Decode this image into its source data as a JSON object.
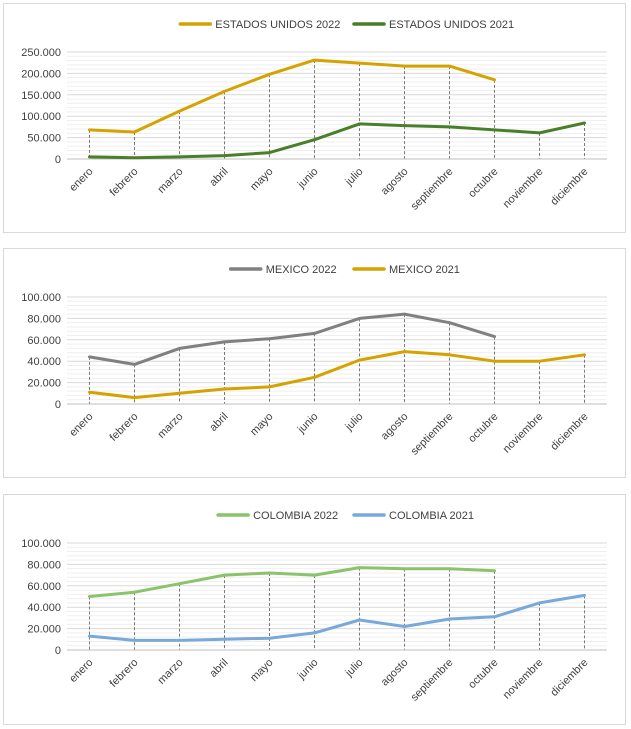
{
  "chart_data": [
    {
      "type": "line",
      "categories": [
        "enero",
        "febrero",
        "marzo",
        "abril",
        "mayo",
        "junio",
        "julio",
        "agosto",
        "septiembre",
        "octubre",
        "noviembre",
        "diciembre"
      ],
      "series": [
        {
          "name": "ESTADOS UNIDOS 2022",
          "color": "#d4a300",
          "values": [
            68000,
            63000,
            112000,
            158000,
            198000,
            231000,
            224000,
            217000,
            217000,
            185000,
            null,
            null
          ]
        },
        {
          "name": "ESTADOS UNIDOS 2021",
          "color": "#4a7f2a",
          "values": [
            5000,
            3000,
            5000,
            8000,
            15000,
            45000,
            82000,
            78000,
            75000,
            68000,
            61000,
            84000
          ]
        }
      ],
      "ylim": [
        0,
        250000
      ],
      "yticks": [
        0,
        50000,
        100000,
        150000,
        200000,
        250000
      ],
      "ytick_labels": [
        "0",
        "50.000",
        "100.000",
        "150.000",
        "200.000",
        "250.000"
      ],
      "legend_position": "top",
      "grid": true,
      "drop_lines": true
    },
    {
      "type": "line",
      "categories": [
        "enero",
        "febrero",
        "marzo",
        "abril",
        "mayo",
        "junio",
        "julio",
        "agosto",
        "septiembre",
        "octubre",
        "noviembre",
        "diciembre"
      ],
      "series": [
        {
          "name": "MEXICO 2022",
          "color": "#808080",
          "values": [
            44000,
            37000,
            52000,
            58000,
            61000,
            66000,
            80000,
            84000,
            76000,
            63000,
            null,
            null
          ]
        },
        {
          "name": "MEXICO 2021",
          "color": "#d4a300",
          "values": [
            11000,
            6000,
            10000,
            14000,
            16000,
            25000,
            41000,
            49000,
            46000,
            40000,
            40000,
            46000
          ]
        }
      ],
      "ylim": [
        0,
        100000
      ],
      "yticks": [
        0,
        20000,
        40000,
        60000,
        80000,
        100000
      ],
      "ytick_labels": [
        "0",
        "20.000",
        "40.000",
        "60.000",
        "80.000",
        "100.000"
      ],
      "legend_position": "top",
      "grid": true,
      "drop_lines": true
    },
    {
      "type": "line",
      "categories": [
        "enero",
        "febrero",
        "marzo",
        "abril",
        "mayo",
        "junio",
        "julio",
        "agosto",
        "septiembre",
        "octubre",
        "noviembre",
        "diciembre"
      ],
      "series": [
        {
          "name": "COLOMBIA 2022",
          "color": "#8cc26a",
          "values": [
            50000,
            54000,
            62000,
            70000,
            72000,
            70000,
            77000,
            76000,
            76000,
            74000,
            null,
            null
          ]
        },
        {
          "name": "COLOMBIA 2021",
          "color": "#7aa9d9",
          "values": [
            13000,
            9000,
            9000,
            10000,
            11000,
            16000,
            28000,
            22000,
            29000,
            31000,
            44000,
            51000
          ]
        }
      ],
      "ylim": [
        0,
        100000
      ],
      "yticks": [
        0,
        20000,
        40000,
        60000,
        80000,
        100000
      ],
      "ytick_labels": [
        "0",
        "20.000",
        "40.000",
        "60.000",
        "80.000",
        "100.000"
      ],
      "legend_position": "top",
      "grid": true,
      "drop_lines": true
    }
  ]
}
